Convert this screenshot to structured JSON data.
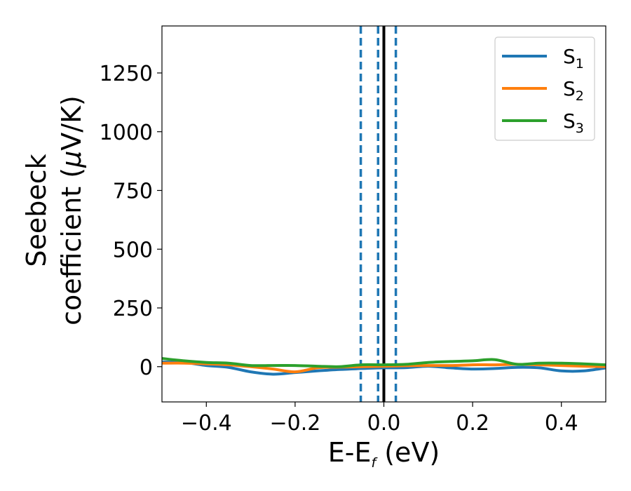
{
  "chart_data": {
    "type": "line",
    "xlabel": "E-E",
    "xlabel_sub": "f",
    "xlabel_unit": " (eV)",
    "ylabel_line1": "Seebeck",
    "ylabel_line2_prefix": "coefficient  (",
    "ylabel_mu": "μ",
    "ylabel_line2_suffix": "V/K)",
    "xlim": [
      -0.5,
      0.5
    ],
    "ylim": [
      -150,
      1450
    ],
    "xticks": [
      -0.4,
      -0.2,
      0.0,
      0.2,
      0.4
    ],
    "xtick_labels": [
      "−0.4",
      "−0.2",
      "0.0",
      "0.2",
      "0.4"
    ],
    "yticks": [
      0,
      250,
      500,
      750,
      1000,
      1250
    ],
    "ytick_labels": [
      "0",
      "250",
      "500",
      "750",
      "1000",
      "1250"
    ],
    "grid": false,
    "legend_position": "top-right",
    "vlines": [
      {
        "x": -0.052,
        "style": "dashed",
        "color": "#1f77b4"
      },
      {
        "x": -0.013,
        "style": "dashed",
        "color": "#1f77b4"
      },
      {
        "x": 0.027,
        "style": "dashed",
        "color": "#1f77b4"
      },
      {
        "x": 0.0,
        "style": "solid",
        "color": "#000000"
      }
    ],
    "x": [
      -0.5,
      -0.45,
      -0.4,
      -0.35,
      -0.3,
      -0.25,
      -0.2,
      -0.15,
      -0.1,
      -0.05,
      0.0,
      0.05,
      0.1,
      0.15,
      0.2,
      0.25,
      0.3,
      0.35,
      0.4,
      0.45,
      0.5
    ],
    "series": [
      {
        "name": "S",
        "sub": "1",
        "color": "#1f77b4",
        "values": [
          20,
          18,
          5,
          -3,
          -22,
          -32,
          -25,
          -18,
          -12,
          -8,
          -5,
          -4,
          2,
          -5,
          -10,
          -8,
          -3,
          -5,
          -18,
          -18,
          -5
        ]
      },
      {
        "name": "S",
        "sub": "2",
        "color": "#ff7f0e",
        "values": [
          15,
          15,
          12,
          8,
          0,
          -10,
          -22,
          -5,
          -2,
          0,
          2,
          4,
          5,
          5,
          8,
          8,
          10,
          8,
          5,
          2,
          0
        ]
      },
      {
        "name": "S",
        "sub": "3",
        "color": "#2ca02c",
        "values": [
          35,
          25,
          18,
          15,
          5,
          5,
          5,
          2,
          0,
          8,
          8,
          10,
          18,
          22,
          25,
          30,
          10,
          15,
          15,
          12,
          8
        ]
      }
    ]
  }
}
